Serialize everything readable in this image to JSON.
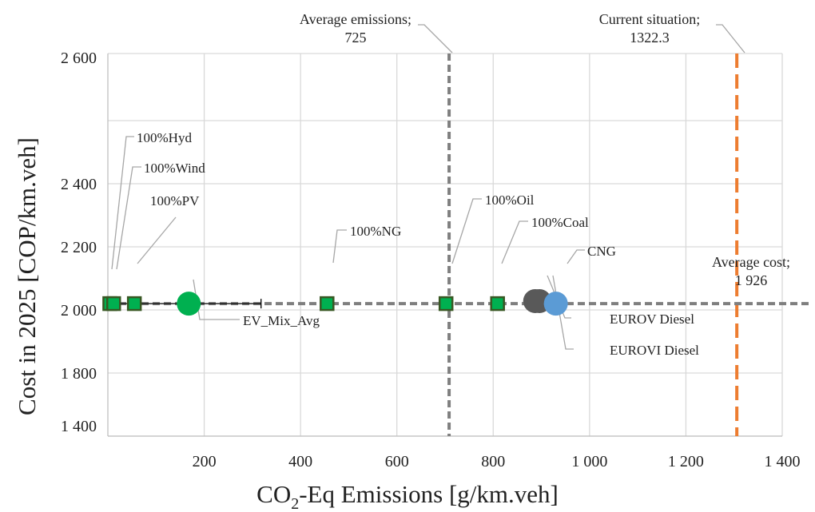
{
  "chart_data": {
    "type": "scatter",
    "xlabel_parts": [
      "CO",
      "2",
      "-Eq Emissions [g/km.veh]"
    ],
    "ylabel": "Cost in 2025 [COP/km.veh]",
    "x_ticks": [
      "200",
      "400",
      "600",
      "800",
      "1 000",
      "1 200",
      "1 400"
    ],
    "x_tick_values": [
      200,
      400,
      600,
      800,
      1000,
      1200,
      1400
    ],
    "y_ticks": [
      "1 400",
      "1 800",
      "2 000",
      "2 200",
      "2 400",
      "2 600"
    ],
    "y_axis_note": "y axis is not linear: ticks 1 400 and 1 800 are drawn one grid step apart",
    "xlim": [
      0,
      1400
    ],
    "grid": true,
    "points": [
      {
        "label": "100%Hyd",
        "x": 4,
        "y": 2020,
        "marker": "square",
        "color": "#00b050"
      },
      {
        "label": "100%Wind",
        "x": 12,
        "y": 2020,
        "marker": "square",
        "color": "#00b050"
      },
      {
        "label": "100%PV",
        "x": 55,
        "y": 2020,
        "marker": "square",
        "color": "#00b050"
      },
      {
        "label": "100%NG",
        "x": 455,
        "y": 2020,
        "marker": "square",
        "color": "#00b050"
      },
      {
        "label": "100%Oil",
        "x": 702,
        "y": 2020,
        "marker": "square",
        "color": "#00b050"
      },
      {
        "label": "100%Coal",
        "x": 809,
        "y": 2020,
        "marker": "square",
        "color": "#00b050"
      },
      {
        "label": "EV_Mix_Avg",
        "x": 168,
        "y": 2020,
        "marker": "circle",
        "color": "#00b050"
      },
      {
        "label": "EUROV Diesel",
        "x": 887,
        "y": 2028,
        "marker": "circle",
        "color": "#595959"
      },
      {
        "label": "EUROVI Diesel",
        "x": 896,
        "y": 2028,
        "marker": "circle",
        "color": "#595959"
      },
      {
        "label": "CNG",
        "x": 930,
        "y": 2020,
        "marker": "circle",
        "color": "#5b9bd5"
      }
    ],
    "ev_error_bar": {
      "x_min": 0,
      "x_max": 318,
      "y": 2020
    },
    "reference_lines": [
      {
        "label_line1": "Average emissions;",
        "label_line2": "725",
        "orientation": "vertical",
        "value": 725,
        "color": "#7f7f7f"
      },
      {
        "label_line1": "Current situation;",
        "label_line2": "1322.3",
        "orientation": "vertical",
        "value": 1322.3,
        "color": "#ed7d31"
      },
      {
        "label_line1": "Average cost;",
        "label_line2": "1 926",
        "orientation": "horizontal",
        "value": 1926,
        "color": "#7f7f7f"
      }
    ]
  }
}
